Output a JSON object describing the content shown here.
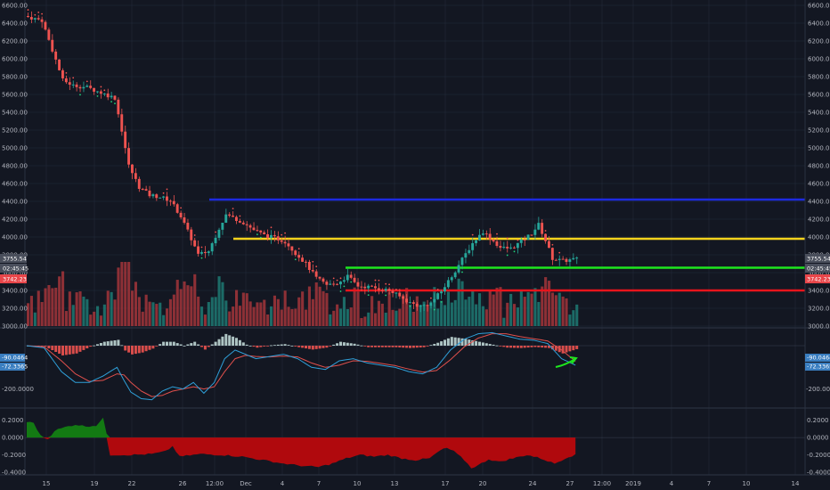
{
  "colors": {
    "background": "#131722",
    "grid": "#232a3a",
    "separator": "#2a3140",
    "label": "#b2b5be",
    "up": "#26a69a",
    "down": "#ef5350",
    "volume_up": "#1f7a73",
    "volume_down": "#a3353a",
    "blue_line": "#1d2ae0",
    "yellow_line": "#f5d31c",
    "green_line": "#1ee61e",
    "red_line": "#e8141c",
    "macd_line": "#2f9fd8",
    "signal_line": "#e0504c",
    "area_pos": "#137a13",
    "area_neg": "#b0090d",
    "badge_dark": "#4a4f5c",
    "badge_red": "#e8464a",
    "badge_blue": "#3a7ec0",
    "arrow": "#1ee61e"
  },
  "price_axis": {
    "ticks": [
      "6600.00",
      "6400.00",
      "6200.00",
      "6000.00",
      "5800.00",
      "5600.00",
      "5400.00",
      "5200.00",
      "5000.00",
      "4800.00",
      "4600.00",
      "4400.00",
      "4200.00",
      "4000.00",
      "3800.00",
      "3600.00",
      "3400.00",
      "3200.00",
      "3000.00"
    ],
    "badge_price": "3755.54",
    "badge_countdown": "02:45:45",
    "badge_close": "3742.23"
  },
  "macd_axis": {
    "ticks": [
      "-200.0000"
    ],
    "badge_macd": "-90.0464",
    "badge_signal": "-72.3365"
  },
  "osc_axis": {
    "ticks": [
      "0.2000",
      "0.0000",
      "-0.2000",
      "-0.4000"
    ]
  },
  "time_axis": {
    "ticks": [
      "15",
      "19",
      "22",
      "26",
      "12:00",
      "Dec",
      "4",
      "7",
      "10",
      "13",
      "17",
      "20",
      "24",
      "27",
      "12:00",
      "2019",
      "4",
      "7",
      "10",
      "14"
    ]
  },
  "chart_data": [
    {
      "type": "candlestick",
      "pane": "price",
      "ylim": [
        3000,
        6600
      ],
      "levels": [
        {
          "color": "blue",
          "value": 4420
        },
        {
          "color": "yellow",
          "value": 3980
        },
        {
          "color": "green",
          "value": 3655
        },
        {
          "color": "red",
          "value": 3400
        }
      ],
      "anchors": [
        {
          "x": 0,
          "price": 6480
        },
        {
          "x": 5,
          "price": 6430
        },
        {
          "x": 8,
          "price": 6100
        },
        {
          "x": 11,
          "price": 5760
        },
        {
          "x": 14,
          "price": 5700
        },
        {
          "x": 18,
          "price": 5680
        },
        {
          "x": 22,
          "price": 5620
        },
        {
          "x": 26,
          "price": 5560
        },
        {
          "x": 28,
          "price": 5200
        },
        {
          "x": 30,
          "price": 4800
        },
        {
          "x": 33,
          "price": 4560
        },
        {
          "x": 36,
          "price": 4470
        },
        {
          "x": 39,
          "price": 4450
        },
        {
          "x": 42,
          "price": 4410
        },
        {
          "x": 45,
          "price": 4230
        },
        {
          "x": 48,
          "price": 3980
        },
        {
          "x": 50,
          "price": 3800
        },
        {
          "x": 53,
          "price": 3840
        },
        {
          "x": 56,
          "price": 4100
        },
        {
          "x": 58,
          "price": 4250
        },
        {
          "x": 61,
          "price": 4200
        },
        {
          "x": 63,
          "price": 4160
        },
        {
          "x": 66,
          "price": 4080
        },
        {
          "x": 69,
          "price": 4020
        },
        {
          "x": 72,
          "price": 3990
        },
        {
          "x": 75,
          "price": 3950
        },
        {
          "x": 78,
          "price": 3820
        },
        {
          "x": 81,
          "price": 3700
        },
        {
          "x": 84,
          "price": 3540
        },
        {
          "x": 87,
          "price": 3460
        },
        {
          "x": 90,
          "price": 3480
        },
        {
          "x": 93,
          "price": 3560
        },
        {
          "x": 96,
          "price": 3450
        },
        {
          "x": 99,
          "price": 3440
        },
        {
          "x": 102,
          "price": 3420
        },
        {
          "x": 105,
          "price": 3400
        },
        {
          "x": 108,
          "price": 3330
        },
        {
          "x": 111,
          "price": 3260
        },
        {
          "x": 114,
          "price": 3220
        },
        {
          "x": 117,
          "price": 3260
        },
        {
          "x": 120,
          "price": 3390
        },
        {
          "x": 123,
          "price": 3560
        },
        {
          "x": 126,
          "price": 3750
        },
        {
          "x": 129,
          "price": 3930
        },
        {
          "x": 132,
          "price": 4060
        },
        {
          "x": 134,
          "price": 3990
        },
        {
          "x": 137,
          "price": 3880
        },
        {
          "x": 140,
          "price": 3870
        },
        {
          "x": 143,
          "price": 3950
        },
        {
          "x": 146,
          "price": 4040
        },
        {
          "x": 148,
          "price": 4140
        },
        {
          "x": 150,
          "price": 3960
        },
        {
          "x": 152,
          "price": 3760
        },
        {
          "x": 155,
          "price": 3730
        },
        {
          "x": 158,
          "price": 3750
        }
      ],
      "candle_count": 159
    },
    {
      "type": "bar",
      "pane": "volume",
      "overlay": "price"
    },
    {
      "type": "line",
      "pane": "macd",
      "ylim": [
        -280,
        70
      ],
      "series": [
        {
          "role": "macd",
          "anchors": [
            [
              0,
              0
            ],
            [
              5,
              -10
            ],
            [
              10,
              -120
            ],
            [
              14,
              -170
            ],
            [
              18,
              -170
            ],
            [
              22,
              -140
            ],
            [
              26,
              -100
            ],
            [
              28,
              -160
            ],
            [
              30,
              -215
            ],
            [
              33,
              -245
            ],
            [
              36,
              -250
            ],
            [
              39,
              -210
            ],
            [
              42,
              -190
            ],
            [
              45,
              -200
            ],
            [
              48,
              -170
            ],
            [
              51,
              -220
            ],
            [
              54,
              -170
            ],
            [
              57,
              -60
            ],
            [
              60,
              -20
            ],
            [
              63,
              -40
            ],
            [
              66,
              -60
            ],
            [
              70,
              -50
            ],
            [
              74,
              -40
            ],
            [
              78,
              -60
            ],
            [
              82,
              -100
            ],
            [
              86,
              -110
            ],
            [
              90,
              -70
            ],
            [
              94,
              -60
            ],
            [
              98,
              -80
            ],
            [
              102,
              -90
            ],
            [
              106,
              -100
            ],
            [
              110,
              -120
            ],
            [
              114,
              -130
            ],
            [
              118,
              -100
            ],
            [
              122,
              -20
            ],
            [
              126,
              30
            ],
            [
              130,
              55
            ],
            [
              134,
              60
            ],
            [
              138,
              45
            ],
            [
              142,
              30
            ],
            [
              146,
              25
            ],
            [
              150,
              10
            ],
            [
              154,
              -60
            ],
            [
              158,
              -90
            ]
          ]
        },
        {
          "role": "signal",
          "anchors": [
            [
              0,
              0
            ],
            [
              5,
              -5
            ],
            [
              10,
              -70
            ],
            [
              14,
              -130
            ],
            [
              18,
              -165
            ],
            [
              22,
              -160
            ],
            [
              26,
              -130
            ],
            [
              28,
              -135
            ],
            [
              30,
              -170
            ],
            [
              33,
              -210
            ],
            [
              36,
              -235
            ],
            [
              39,
              -230
            ],
            [
              42,
              -210
            ],
            [
              45,
              -200
            ],
            [
              48,
              -190
            ],
            [
              51,
              -200
            ],
            [
              54,
              -190
            ],
            [
              57,
              -120
            ],
            [
              60,
              -60
            ],
            [
              63,
              -45
            ],
            [
              66,
              -50
            ],
            [
              70,
              -52
            ],
            [
              74,
              -48
            ],
            [
              78,
              -52
            ],
            [
              82,
              -80
            ],
            [
              86,
              -100
            ],
            [
              90,
              -90
            ],
            [
              94,
              -70
            ],
            [
              98,
              -72
            ],
            [
              102,
              -82
            ],
            [
              106,
              -92
            ],
            [
              110,
              -108
            ],
            [
              114,
              -122
            ],
            [
              118,
              -115
            ],
            [
              122,
              -65
            ],
            [
              126,
              -5
            ],
            [
              130,
              35
            ],
            [
              134,
              55
            ],
            [
              138,
              55
            ],
            [
              142,
              42
            ],
            [
              146,
              32
            ],
            [
              150,
              22
            ],
            [
              154,
              -20
            ],
            [
              158,
              -72
            ]
          ]
        }
      ]
    },
    {
      "type": "area",
      "pane": "oscillator",
      "ylim": [
        -0.42,
        0.32
      ],
      "anchors": [
        [
          0,
          0.18
        ],
        [
          2,
          0.17
        ],
        [
          4,
          0.02
        ],
        [
          6,
          -0.02
        ],
        [
          8,
          0.08
        ],
        [
          11,
          0.12
        ],
        [
          14,
          0.15
        ],
        [
          17,
          0.13
        ],
        [
          20,
          0.14
        ],
        [
          22,
          0.22
        ],
        [
          23,
          0.05
        ],
        [
          24,
          -0.2
        ],
        [
          30,
          -0.2
        ],
        [
          36,
          -0.19
        ],
        [
          40,
          -0.16
        ],
        [
          42,
          -0.1
        ],
        [
          44,
          -0.22
        ],
        [
          50,
          -0.19
        ],
        [
          56,
          -0.2
        ],
        [
          62,
          -0.22
        ],
        [
          68,
          -0.26
        ],
        [
          74,
          -0.3
        ],
        [
          80,
          -0.33
        ],
        [
          84,
          -0.34
        ],
        [
          88,
          -0.3
        ],
        [
          92,
          -0.24
        ],
        [
          96,
          -0.2
        ],
        [
          100,
          -0.22
        ],
        [
          104,
          -0.2
        ],
        [
          108,
          -0.24
        ],
        [
          112,
          -0.26
        ],
        [
          116,
          -0.24
        ],
        [
          119,
          -0.15
        ],
        [
          121,
          -0.12
        ],
        [
          123,
          -0.16
        ],
        [
          126,
          -0.26
        ],
        [
          128,
          -0.35
        ],
        [
          130,
          -0.32
        ],
        [
          133,
          -0.25
        ],
        [
          136,
          -0.28
        ],
        [
          140,
          -0.24
        ],
        [
          144,
          -0.2
        ],
        [
          148,
          -0.24
        ],
        [
          152,
          -0.3
        ],
        [
          156,
          -0.22
        ],
        [
          158,
          -0.2
        ]
      ]
    }
  ]
}
